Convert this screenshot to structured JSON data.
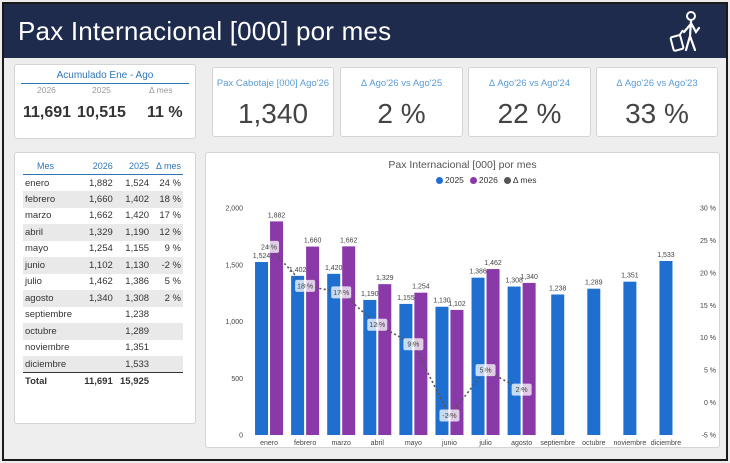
{
  "header": {
    "title": "Pax Internacional [000] por mes",
    "icon": "traveler-luggage-icon"
  },
  "accumulated": {
    "title": "Acumulado Ene - Ago",
    "columns": [
      "2026",
      "2025",
      "Δ mes"
    ],
    "values": [
      "11,691",
      "10,515",
      "11 %"
    ]
  },
  "kpis": [
    {
      "label": "Pax Cabotaje [000] Ago'26",
      "value": "1,340"
    },
    {
      "label": "Δ Ago'26 vs Ago'25",
      "value": "2 %"
    },
    {
      "label": "Δ Ago'26 vs Ago'24",
      "value": "22 %"
    },
    {
      "label": "Δ Ago'26 vs Ago'23",
      "value": "33 %"
    }
  ],
  "table": {
    "headers": [
      "Mes",
      "2026",
      "2025",
      "Δ mes"
    ],
    "rows": [
      [
        "enero",
        "1,882",
        "1,524",
        "24 %"
      ],
      [
        "febrero",
        "1,660",
        "1,402",
        "18 %"
      ],
      [
        "marzo",
        "1,662",
        "1,420",
        "17 %"
      ],
      [
        "abril",
        "1,329",
        "1,190",
        "12 %"
      ],
      [
        "mayo",
        "1,254",
        "1,155",
        "9 %"
      ],
      [
        "junio",
        "1,102",
        "1,130",
        "-2 %"
      ],
      [
        "julio",
        "1,462",
        "1,386",
        "5 %"
      ],
      [
        "agosto",
        "1,340",
        "1,308",
        "2 %"
      ],
      [
        "septiembre",
        "",
        "1,238",
        ""
      ],
      [
        "octubre",
        "",
        "1,289",
        ""
      ],
      [
        "noviembre",
        "",
        "1,351",
        ""
      ],
      [
        "diciembre",
        "",
        "1,533",
        ""
      ]
    ],
    "total": [
      "Total",
      "11,691",
      "15,925",
      ""
    ]
  },
  "colors": {
    "s2025": "#1f6fd1",
    "s2026": "#8a3aa8",
    "delta": "#555555",
    "header": "#1f2b4d"
  },
  "chart_data": {
    "type": "bar",
    "title": "Pax Internacional [000] por mes",
    "categories": [
      "enero",
      "febrero",
      "marzo",
      "abril",
      "mayo",
      "junio",
      "julio",
      "agosto",
      "septiembre",
      "octubre",
      "noviembre",
      "diciembre"
    ],
    "series": [
      {
        "name": "2025",
        "values": [
          1524,
          1402,
          1420,
          1190,
          1155,
          1130,
          1386,
          1308,
          1238,
          1289,
          1351,
          1533
        ]
      },
      {
        "name": "2026",
        "values": [
          1882,
          1660,
          1662,
          1329,
          1254,
          1102,
          1462,
          1340,
          null,
          null,
          null,
          null
        ]
      },
      {
        "name": "Δ mes",
        "type": "line",
        "axis": "right",
        "values": [
          24,
          18,
          17,
          12,
          9,
          -2,
          5,
          2,
          null,
          null,
          null,
          null
        ]
      }
    ],
    "data_labels_2025": [
      "1,524",
      "1,402",
      "1,420",
      "1,190",
      "1,155",
      "1,130",
      "1,386",
      "1,308",
      "1,238",
      "1,289",
      "1,351",
      "1,533"
    ],
    "data_labels_2026": [
      "1,882",
      "1,660",
      "1,662",
      "1,329",
      "1,254",
      "1,102",
      "1,462",
      "1,340",
      "",
      "",
      "",
      ""
    ],
    "data_labels_delta": [
      "24 %",
      "18 %",
      "17 %",
      "12 %",
      "9 %",
      "-2 %",
      "5 %",
      "2 %",
      "",
      "",
      "",
      ""
    ],
    "yticks_left": [
      "0",
      "500",
      "1,000",
      "1,500",
      "2,000"
    ],
    "ylim_left": [
      0,
      2000
    ],
    "yticks_right": [
      "-5 %",
      "0 %",
      "5 %",
      "10 %",
      "15 %",
      "20 %",
      "25 %",
      "30 %"
    ],
    "ylim_right": [
      -5,
      30
    ],
    "legend": "top-center",
    "grid": false
  }
}
